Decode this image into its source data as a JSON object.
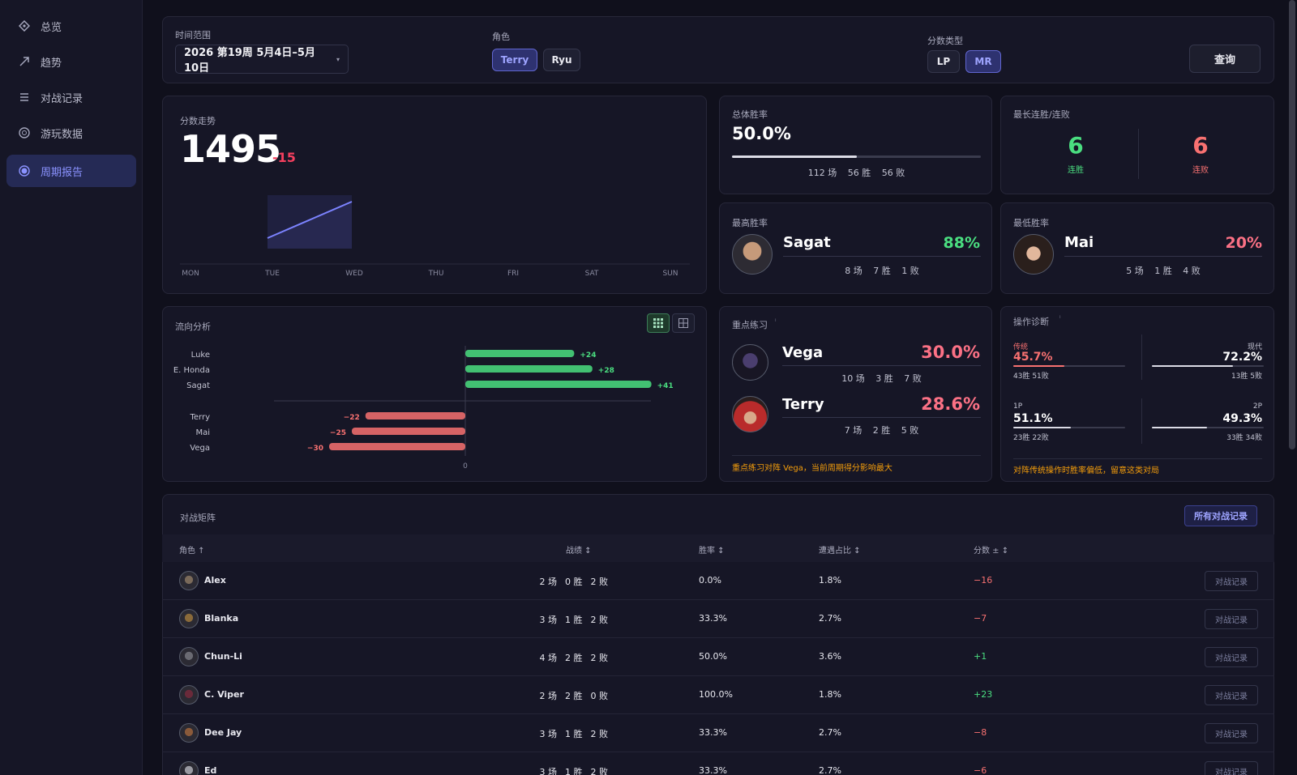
{
  "sidebar": {
    "items": [
      {
        "label": "总览",
        "icon": "overview-icon"
      },
      {
        "label": "趋势",
        "icon": "trend-arrow-icon"
      },
      {
        "label": "对战记录",
        "icon": "list-icon"
      },
      {
        "label": "游玩数据",
        "icon": "data-circle-icon"
      },
      {
        "label": "周期报告",
        "icon": "report-icon",
        "active": true
      }
    ]
  },
  "filters": {
    "time_label": "时间范围",
    "time_value": "2026 第19周 5月4日–5月10日",
    "role_label": "角色",
    "roles": [
      "Terry",
      "Ryu"
    ],
    "score_label": "分数类型",
    "score_types": [
      "LP",
      "MR"
    ],
    "query_label": "查询"
  },
  "score_trend": {
    "title": "分数走势",
    "value": "1495",
    "delta": "-15",
    "days": [
      "MON",
      "TUE",
      "WED",
      "THU",
      "FRI",
      "SAT",
      "SUN"
    ]
  },
  "overall": {
    "title": "总体胜率",
    "rate": "50.0%",
    "rate_fraction": 0.5,
    "games": "112 场",
    "wins": "56 胜",
    "losses": "56 败"
  },
  "streak": {
    "title": "最长连胜/连败",
    "win_value": "6",
    "win_label": "连胜",
    "loss_value": "6",
    "loss_label": "连败"
  },
  "best": {
    "title": "最高胜率",
    "name": "Sagat",
    "rate": "88%",
    "games": "8 场",
    "wins": "7 胜",
    "losses": "1 败"
  },
  "worst": {
    "title": "最低胜率",
    "name": "Mai",
    "rate": "20%",
    "games": "5 场",
    "wins": "1 胜",
    "losses": "4 败"
  },
  "flow": {
    "title": "流向分析",
    "zero_label": "0",
    "positive": [
      {
        "name": "Luke",
        "value": 24,
        "label": "+24"
      },
      {
        "name": "E. Honda",
        "value": 28,
        "label": "+28"
      },
      {
        "name": "Sagat",
        "value": 41,
        "label": "+41"
      }
    ],
    "negative": [
      {
        "name": "Terry",
        "value": -22,
        "label": "−22"
      },
      {
        "name": "Mai",
        "value": -25,
        "label": "−25"
      },
      {
        "name": "Vega",
        "value": -30,
        "label": "−30"
      }
    ]
  },
  "practice": {
    "title": "重点练习",
    "items": [
      {
        "name": "Vega",
        "rate": "30.0%",
        "games": "10 场",
        "wins": "3 胜",
        "losses": "7 败"
      },
      {
        "name": "Terry",
        "rate": "28.6%",
        "games": "7 场",
        "wins": "2 胜",
        "losses": "5 败"
      }
    ],
    "note": "重点练习对阵 Vega，当前周期得分影响最大"
  },
  "diag": {
    "title": "操作诊断",
    "left_top_label": "传统",
    "left_top_value": "45.7%",
    "left_top_fraction": 0.457,
    "left_top_sub": "43胜 51败",
    "right_top_label": "现代",
    "right_top_value": "72.2%",
    "right_top_fraction": 0.722,
    "right_top_sub": "13胜 5败",
    "left_bottom_label": "1P",
    "left_bottom_value": "51.1%",
    "left_bottom_fraction": 0.511,
    "left_bottom_sub": "23胜 22败",
    "right_bottom_label": "2P",
    "right_bottom_value": "49.3%",
    "right_bottom_fraction": 0.493,
    "right_bottom_sub": "33胜 34败",
    "note": "对阵传统操作时胜率偏低，留意这类对局"
  },
  "matrix": {
    "title": "对战矩阵",
    "all_records": "所有对战记录",
    "columns": [
      "角色 ↑",
      "战绩 ↕",
      "胜率 ↕",
      "遭遇占比 ↕",
      "分数 ± ↕"
    ],
    "record_btn": "对战记录",
    "rows": [
      {
        "name": "Alex",
        "games": "2 场",
        "wins": "0 胜",
        "losses": "2 败",
        "rate": "0.0%",
        "share": "1.8%",
        "delta": "−16",
        "pos": false
      },
      {
        "name": "Blanka",
        "games": "3 场",
        "wins": "1 胜",
        "losses": "2 败",
        "rate": "33.3%",
        "share": "2.7%",
        "delta": "−7",
        "pos": false
      },
      {
        "name": "Chun-Li",
        "games": "4 场",
        "wins": "2 胜",
        "losses": "2 败",
        "rate": "50.0%",
        "share": "3.6%",
        "delta": "+1",
        "pos": true
      },
      {
        "name": "C. Viper",
        "games": "2 场",
        "wins": "2 胜",
        "losses": "0 败",
        "rate": "100.0%",
        "share": "1.8%",
        "delta": "+23",
        "pos": true
      },
      {
        "name": "Dee Jay",
        "games": "3 场",
        "wins": "1 胜",
        "losses": "2 败",
        "rate": "33.3%",
        "share": "2.7%",
        "delta": "−8",
        "pos": false
      },
      {
        "name": "Ed",
        "games": "3 场",
        "wins": "1 胜",
        "losses": "2 败",
        "rate": "33.3%",
        "share": "2.7%",
        "delta": "−6",
        "pos": false
      }
    ]
  },
  "colors": {
    "accent": "#8b93ff",
    "positive": "#4ade80",
    "negative": "#f87171",
    "warning": "#f59e0b",
    "panel": "#161626",
    "background": "#10101c"
  }
}
